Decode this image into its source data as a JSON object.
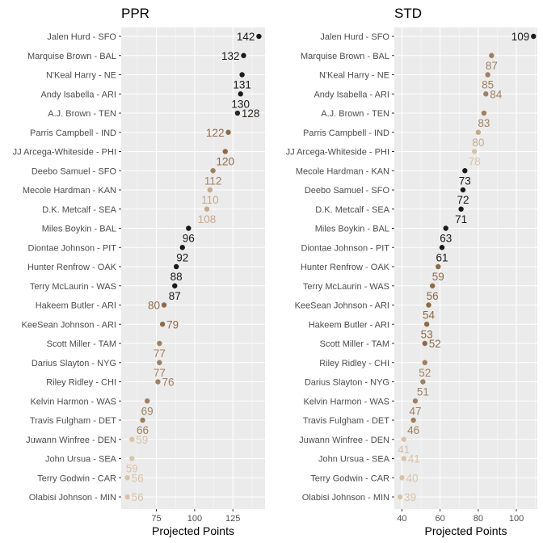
{
  "chart_data": [
    {
      "type": "scatter",
      "title": "PPR",
      "xlabel": "Projected Points",
      "xticks": [
        75,
        100,
        125
      ],
      "xlim": [
        52,
        146
      ],
      "grid": true,
      "categories": [
        "Jalen Hurd - SFO",
        "Marquise Brown - BAL",
        "N'Keal Harry - NE",
        "Andy Isabella - ARI",
        "A.J. Brown - TEN",
        "Parris Campbell - IND",
        "JJ Arcega-Whiteside - PHI",
        "Deebo Samuel - SFO",
        "Mecole Hardman - KAN",
        "D.K. Metcalf - SEA",
        "Miles Boykin - BAL",
        "Diontae Johnson - PIT",
        "Hunter Renfrow - OAK",
        "Terry McLaurin - WAS",
        "Hakeem Butler - ARI",
        "KeeSean Johnson - ARI",
        "Scott Miller - TAM",
        "Darius Slayton - NYG",
        "Riley Ridley - CHI",
        "Kelvin Harmon - WAS",
        "Travis Fulgham - DET",
        "Juwann Winfree - DEN",
        "John Ursua - SEA",
        "Terry Godwin - CAR",
        "Olabisi Johnson - MIN"
      ],
      "values": [
        142,
        132,
        131,
        130,
        128,
        122,
        120,
        112,
        110,
        108,
        96,
        92,
        88,
        87,
        80,
        79,
        77,
        77,
        76,
        69,
        66,
        59,
        59,
        56,
        56
      ],
      "labels": [
        "142",
        "132",
        "131",
        "130",
        "128",
        "122",
        "120",
        "112",
        "110",
        "108",
        "96",
        "92",
        "88",
        "87",
        "80",
        "79",
        "77",
        "77",
        "76",
        "69",
        "66",
        "59",
        "59",
        "56",
        "56"
      ],
      "colors": [
        "#1a1a1a",
        "#1a1a1a",
        "#1a1a1a",
        "#1a1a1a",
        "#2e2620",
        "#8f6a4a",
        "#8f6a4a",
        "#a08060",
        "#c5aa8c",
        "#c5aa8c",
        "#1a1a1a",
        "#1a1a1a",
        "#1a1a1a",
        "#1a1a1a",
        "#8f6a4a",
        "#8f6a4a",
        "#a08060",
        "#a08060",
        "#a08060",
        "#a08060",
        "#a08060",
        "#d9c3a8",
        "#d9c3a8",
        "#d9c3a8",
        "#d9c3a8"
      ],
      "label_pos": [
        "left",
        "left",
        "center",
        "center",
        "right",
        "left",
        "center",
        "center",
        "center",
        "center",
        "center",
        "center",
        "center",
        "center",
        "left",
        "right",
        "center",
        "center",
        "right",
        "center",
        "center",
        "right",
        "center",
        "right",
        "right"
      ]
    },
    {
      "type": "scatter",
      "title": "STD",
      "xlabel": "Projected Points",
      "xticks": [
        40,
        60,
        80,
        100
      ],
      "xlim": [
        36,
        111
      ],
      "grid": true,
      "categories": [
        "Jalen Hurd - SFO",
        "Marquise Brown - BAL",
        "N'Keal Harry - NE",
        "Andy Isabella - ARI",
        "A.J. Brown - TEN",
        "Parris Campbell - IND",
        "JJ Arcega-Whiteside - PHI",
        "Mecole Hardman - KAN",
        "Deebo Samuel - SFO",
        "D.K. Metcalf - SEA",
        "Miles Boykin - BAL",
        "Diontae Johnson - PIT",
        "Hunter Renfrow - OAK",
        "Terry McLaurin - WAS",
        "KeeSean Johnson - ARI",
        "Hakeem Butler - ARI",
        "Scott Miller - TAM",
        "Riley Ridley - CHI",
        "Darius Slayton - NYG",
        "Kelvin Harmon - WAS",
        "Travis Fulgham - DET",
        "Juwann Winfree - DEN",
        "John Ursua - SEA",
        "Terry Godwin - CAR",
        "Olabisi Johnson - MIN"
      ],
      "values": [
        109,
        87,
        85,
        84,
        83,
        80,
        78,
        73,
        72,
        71,
        63,
        61,
        59,
        56,
        54,
        53,
        52,
        52,
        51,
        47,
        46,
        41,
        41,
        40,
        39
      ],
      "labels": [
        "109",
        "87",
        "85",
        "84",
        "83",
        "80",
        "78",
        "73",
        "72",
        "71",
        "63",
        "61",
        "59",
        "56",
        "54",
        "53",
        "52",
        "52",
        "51",
        "47",
        "46",
        "41",
        "41",
        "40",
        "39"
      ],
      "colors": [
        "#1a1a1a",
        "#a08060",
        "#a08060",
        "#a08060",
        "#a08060",
        "#c5aa8c",
        "#d9c3a8",
        "#1a1a1a",
        "#1a1a1a",
        "#1a1a1a",
        "#1a1a1a",
        "#1a1a1a",
        "#8f6a4a",
        "#8f6a4a",
        "#8f6a4a",
        "#8f6a4a",
        "#8f6a4a",
        "#a08060",
        "#a08060",
        "#a08060",
        "#a08060",
        "#d9c3a8",
        "#d9c3a8",
        "#d9c3a8",
        "#d9c3a8"
      ],
      "label_pos": [
        "left",
        "center",
        "center",
        "right",
        "center",
        "center",
        "center",
        "center",
        "center",
        "center",
        "center",
        "center",
        "center",
        "center",
        "center",
        "center",
        "right",
        "center",
        "center",
        "center",
        "center",
        "center",
        "right",
        "right",
        "right"
      ]
    }
  ]
}
